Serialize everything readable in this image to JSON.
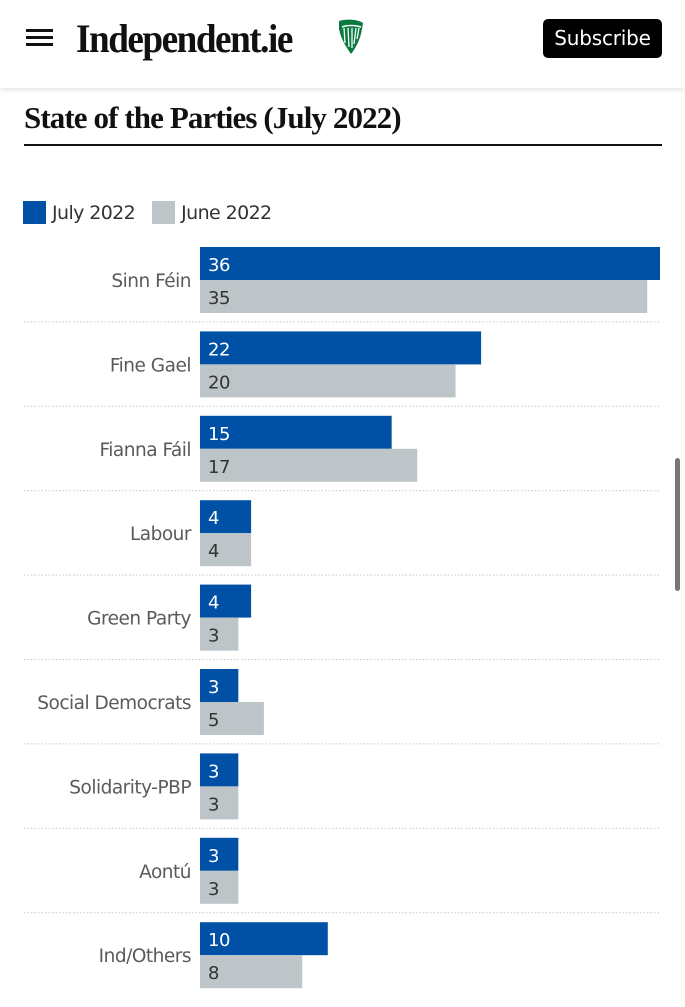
{
  "header": {
    "menu_icon": "hamburger-menu-icon",
    "logo_text": "Independent.ie",
    "logo_icon": "harp-icon",
    "subscribe_label": "Subscribe"
  },
  "colors": {
    "july": "#0050a6",
    "june": "#bdc5c8",
    "harp": "#0a7a3e"
  },
  "chart_data": {
    "type": "bar",
    "orientation": "horizontal",
    "title": "State of the Parties (July 2022)",
    "xlabel": "",
    "ylabel": "",
    "xlim": [
      0,
      36
    ],
    "grid": false,
    "legend_position": "top-left",
    "categories": [
      "Sinn Féin",
      "Fine Gael",
      "Fianna Fáil",
      "Labour",
      "Green Party",
      "Social Democrats",
      "Solidarity-PBP",
      "Aontú",
      "Ind/Others"
    ],
    "series": [
      {
        "name": "July 2022",
        "values": [
          36,
          22,
          15,
          4,
          4,
          3,
          3,
          3,
          10
        ]
      },
      {
        "name": "June 2022",
        "values": [
          35,
          20,
          17,
          4,
          3,
          5,
          3,
          3,
          8
        ]
      }
    ]
  }
}
